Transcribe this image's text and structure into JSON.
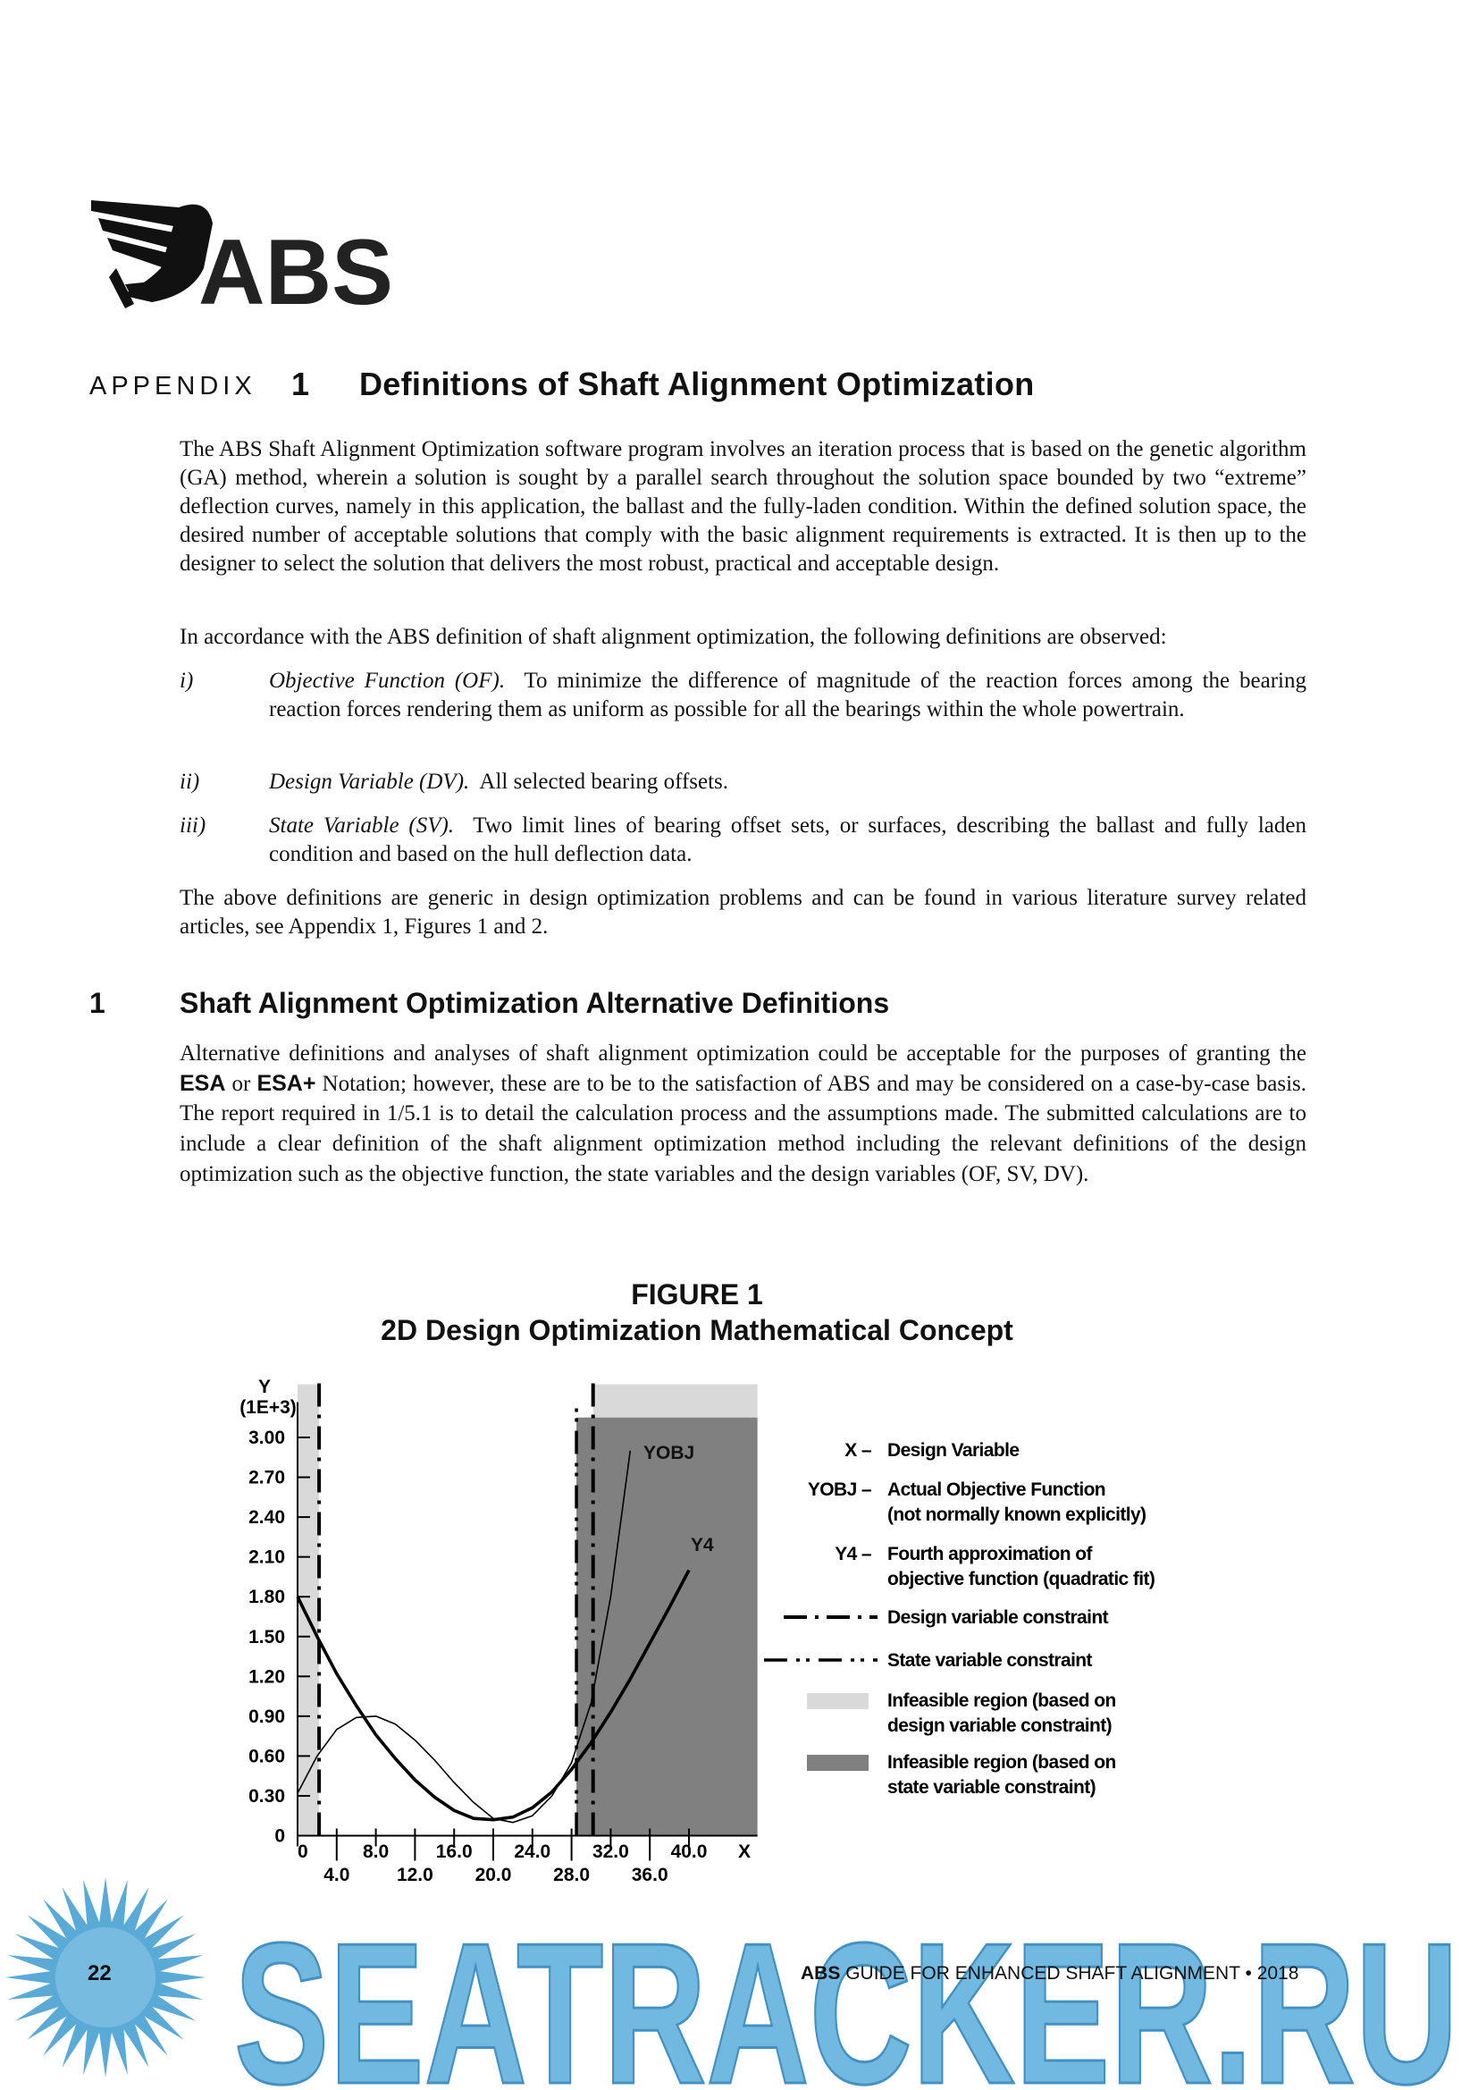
{
  "header": {
    "logo_text": "ABS"
  },
  "appendix": {
    "label": "APPENDIX",
    "number": "1",
    "title": "Definitions of Shaft Alignment Optimization"
  },
  "paragraphs": [
    "The ABS Shaft Alignment Optimization software program involves an iteration process that is based on the genetic algorithm (GA) method, wherein a solution is sought by a parallel search throughout the solution space bounded by two “extreme” deflection curves, namely in this application, the ballast and the fully-laden condition. Within the defined solution space, the desired number of acceptable solutions that comply with the basic alignment requirements is extracted. It is then up to the designer to select the solution that delivers the most robust, practical and acceptable design.",
    "In accordance with the ABS definition of shaft alignment optimization, the following definitions are observed:",
    "The above definitions are generic in design optimization problems and can be found in various literature survey related articles, see Appendix 1, Figures 1 and 2."
  ],
  "definitions": [
    {
      "marker": "i)",
      "term": "Objective Function (OF).",
      "text": "To minimize the difference of magnitude of the reaction forces among the bearing reaction forces rendering them as uniform as possible for all the bearings within the whole powertrain."
    },
    {
      "marker": "ii)",
      "term": "Design Variable (DV).",
      "text": "All selected bearing offsets."
    },
    {
      "marker": "iii)",
      "term": "State Variable (SV).",
      "text": "Two limit lines of bearing offset sets, or surfaces, describing the ballast and fully laden condition and based on the hull deflection data."
    }
  ],
  "section": {
    "number": "1",
    "title": "Shaft Alignment Optimization Alternative Definitions",
    "paragraph": [
      "Alternative definitions and analyses of shaft alignment optimization could be acceptable for the purposes of granting the ",
      "ESA",
      " or ",
      "ESA+",
      " Notation; however, these are to be to the satisfaction of ABS and may be considered on a case-by-case basis. The report required in 1/5.1 is to detail the calculation process and the assumptions made. The submitted calculations are to include a clear definition of the shaft alignment optimization method including the relevant definitions of the design optimization such as the objective function, the state variables and the design variables (OF, SV, DV)."
    ]
  },
  "chart_data": {
    "type": "line",
    "figure_label": "FIGURE 1",
    "title": "2D Design Optimization Mathematical Concept",
    "y_label": "Y",
    "y_unit_label": "(1E+3)",
    "x_label": "X",
    "xlim": [
      0,
      47
    ],
    "ylim": [
      0,
      3.4
    ],
    "xticks": [
      0,
      {
        "value": 4,
        "label": "4.0"
      },
      {
        "value": 8,
        "label": "8.0"
      },
      {
        "value": 12,
        "label": "12.0"
      },
      {
        "value": 16,
        "label": "16.0"
      },
      {
        "value": 20,
        "label": "20.0"
      },
      {
        "value": 24,
        "label": "24.0"
      },
      {
        "value": 28,
        "label": "28.0"
      },
      {
        "value": 32,
        "label": "32.0"
      },
      {
        "value": 36,
        "label": "36.0"
      },
      {
        "value": 40,
        "label": "40.0"
      }
    ],
    "yticks": [
      0,
      {
        "value": 0.3,
        "label": "0.30"
      },
      {
        "value": 0.6,
        "label": "0.60"
      },
      {
        "value": 0.9,
        "label": "0.90"
      },
      {
        "value": 1.2,
        "label": "1.20"
      },
      {
        "value": 1.5,
        "label": "1.50"
      },
      {
        "value": 1.8,
        "label": "1.80"
      },
      {
        "value": 2.1,
        "label": "2.10"
      },
      {
        "value": 2.4,
        "label": "2.40"
      },
      {
        "value": 2.7,
        "label": "2.70"
      },
      {
        "value": 3,
        "label": "3.00"
      }
    ],
    "series": [
      {
        "name": "YOBJ",
        "color": "#000000",
        "x": [
          0,
          2,
          4,
          6,
          8,
          10,
          12,
          14,
          16,
          18,
          20,
          22,
          24,
          26,
          28,
          30,
          32,
          34
        ],
        "values": [
          0.32,
          0.6,
          0.8,
          0.89,
          0.9,
          0.84,
          0.72,
          0.57,
          0.4,
          0.25,
          0.13,
          0.1,
          0.15,
          0.3,
          0.55,
          1.0,
          1.8,
          2.9
        ]
      },
      {
        "name": "Y4",
        "color": "#000000",
        "x": [
          0,
          2,
          4,
          6,
          8,
          10,
          12,
          14,
          16,
          18,
          20,
          22,
          24,
          26,
          28,
          30,
          32,
          34,
          36,
          38,
          40
        ],
        "values": [
          1.8,
          1.5,
          1.22,
          0.98,
          0.76,
          0.58,
          0.42,
          0.29,
          0.19,
          0.13,
          0.12,
          0.14,
          0.21,
          0.33,
          0.5,
          0.7,
          0.93,
          1.18,
          1.45,
          1.72,
          2.0
        ]
      }
    ],
    "design_variable_constraint": [
      2.2,
      30.2
    ],
    "state_variable_constraint": [
      28.5
    ],
    "design_infeasible_regions": [
      [
        0,
        2.2,
        0,
        3.4
      ],
      [
        30.2,
        47,
        3.15,
        3.4
      ]
    ],
    "state_infeasible_regions": [
      [
        28.5,
        47,
        0,
        3.15
      ]
    ],
    "design_region_color": "#d9d9d9",
    "state_region_color": "#808080",
    "legend": [
      {
        "key": "X –",
        "lines": [
          "Design Variable"
        ]
      },
      {
        "key": "YOBJ –",
        "lines": [
          "Actual Objective Function",
          "(not normally known explicitly)"
        ]
      },
      {
        "key": "Y4 –",
        "lines": [
          "Fourth approximation of",
          "objective function (quadratic fit)"
        ]
      },
      {
        "lines": [
          "Design variable constraint"
        ]
      },
      {
        "lines": [
          "State variable constraint"
        ]
      },
      {
        "lines": [
          "Infeasible region (based on",
          "design variable constraint)"
        ]
      },
      {
        "lines": [
          "Infeasible region (based on",
          "state variable constraint)"
        ]
      }
    ]
  },
  "footer": {
    "page": "22",
    "brand": "ABS",
    "guide": "GUIDE FOR ENHANCED SHAFT ALIGNMENT",
    "separator": "•",
    "year": "2018"
  },
  "watermark": "SEATRACKER.RU"
}
